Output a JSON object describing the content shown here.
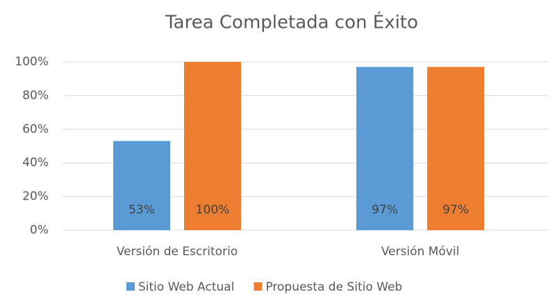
{
  "chart_data": {
    "type": "bar",
    "title": "Tarea Completada con Éxito",
    "categories": [
      "Versión de Escritorio",
      "Versión Móvil"
    ],
    "series": [
      {
        "name": "Sitio Web Actual",
        "color": "#5b9bd5",
        "values": [
          53,
          97
        ],
        "value_labels": [
          "53%",
          "97%"
        ]
      },
      {
        "name": "Propuesta de Sitio Web",
        "color": "#ed7d31",
        "values": [
          100,
          97
        ],
        "value_labels": [
          "100%",
          "97%"
        ]
      }
    ],
    "ylim": [
      0,
      100
    ],
    "yticks": [
      {
        "value": 0,
        "label": "0%"
      },
      {
        "value": 20,
        "label": "20%"
      },
      {
        "value": 40,
        "label": "40%"
      },
      {
        "value": 60,
        "label": "60%"
      },
      {
        "value": 80,
        "label": "80%"
      },
      {
        "value": 100,
        "label": "100%"
      }
    ],
    "grid": true,
    "legend": "bottom"
  }
}
